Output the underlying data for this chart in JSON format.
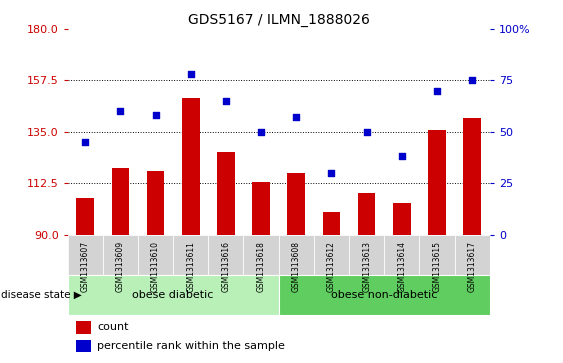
{
  "title": "GDS5167 / ILMN_1888026",
  "samples": [
    "GSM1313607",
    "GSM1313609",
    "GSM1313610",
    "GSM1313611",
    "GSM1313616",
    "GSM1313618",
    "GSM1313608",
    "GSM1313612",
    "GSM1313613",
    "GSM1313614",
    "GSM1313615",
    "GSM1313617"
  ],
  "bar_values": [
    106,
    119,
    118,
    150,
    126,
    113,
    117,
    100,
    108,
    104,
    136,
    141
  ],
  "scatter_values": [
    45,
    60,
    58,
    78,
    65,
    50,
    57,
    30,
    50,
    38,
    70,
    75
  ],
  "ylim_left": [
    90,
    180
  ],
  "yticks_left": [
    90,
    112.5,
    135,
    157.5,
    180
  ],
  "ylim_right": [
    0,
    100
  ],
  "yticks_right": [
    0,
    25,
    50,
    75,
    100
  ],
  "bar_color": "#cc0000",
  "scatter_color": "#0000cc",
  "group1_label": "obese diabetic",
  "group2_label": "obese non-diabetic",
  "group1_count": 6,
  "group2_count": 6,
  "group_bg_color_light": "#b8f0b8",
  "group_bg_color_dark": "#5fcd5f",
  "tick_bg_color": "#d3d3d3",
  "legend_count_label": "count",
  "legend_pct_label": "percentile rank within the sample",
  "disease_state_label": "disease state",
  "left_axis_color": "#cc0000",
  "right_axis_color": "#0000cc"
}
